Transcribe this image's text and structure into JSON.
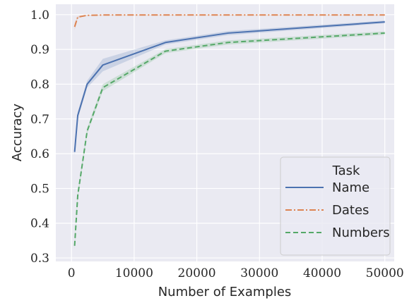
{
  "chart_data": {
    "type": "line",
    "xlabel": "Number of Examples",
    "ylabel": "Accuracy",
    "xlim": [
      -2500,
      51500
    ],
    "ylim": [
      0.29,
      1.03
    ],
    "xticks": [
      0,
      10000,
      20000,
      30000,
      40000,
      50000
    ],
    "yticks": [
      0.3,
      0.4,
      0.5,
      0.6,
      0.7,
      0.8,
      0.9,
      1.0
    ],
    "xtick_labels": [
      "0",
      "10000",
      "20000",
      "30000",
      "40000",
      "50000"
    ],
    "ytick_labels": [
      "0.3",
      "0.4",
      "0.5",
      "0.6",
      "0.7",
      "0.8",
      "0.9",
      "1.0"
    ],
    "grid": true,
    "legend": {
      "title": "Task",
      "placement": "lower-right"
    },
    "series": [
      {
        "name": "Name",
        "color": "#4c72b0",
        "dash": "solid",
        "x": [
          500,
          1000,
          2500,
          5000,
          15000,
          25000,
          50000
        ],
        "y": [
          0.605,
          0.71,
          0.8,
          0.855,
          0.92,
          0.947,
          0.979
        ],
        "band": [
          0.01,
          0.01,
          0.01,
          0.018,
          0.006,
          0.006,
          0.004
        ]
      },
      {
        "name": "Dates",
        "color": "#dd8452",
        "dash": "dashdot",
        "x": [
          500,
          1000,
          2500,
          5000,
          15000,
          25000,
          50000
        ],
        "y": [
          0.965,
          0.993,
          0.998,
          0.999,
          0.999,
          0.999,
          0.999
        ],
        "band": [
          0.01,
          0.003,
          0.001,
          0.001,
          0.001,
          0.001,
          0.001
        ]
      },
      {
        "name": "Numbers",
        "color": "#55a868",
        "dash": "dashed",
        "x": [
          500,
          1000,
          2500,
          5000,
          15000,
          25000,
          50000
        ],
        "y": [
          0.335,
          0.48,
          0.665,
          0.79,
          0.895,
          0.92,
          0.947
        ],
        "band": [
          0.01,
          0.01,
          0.008,
          0.01,
          0.006,
          0.006,
          0.005
        ]
      }
    ]
  }
}
